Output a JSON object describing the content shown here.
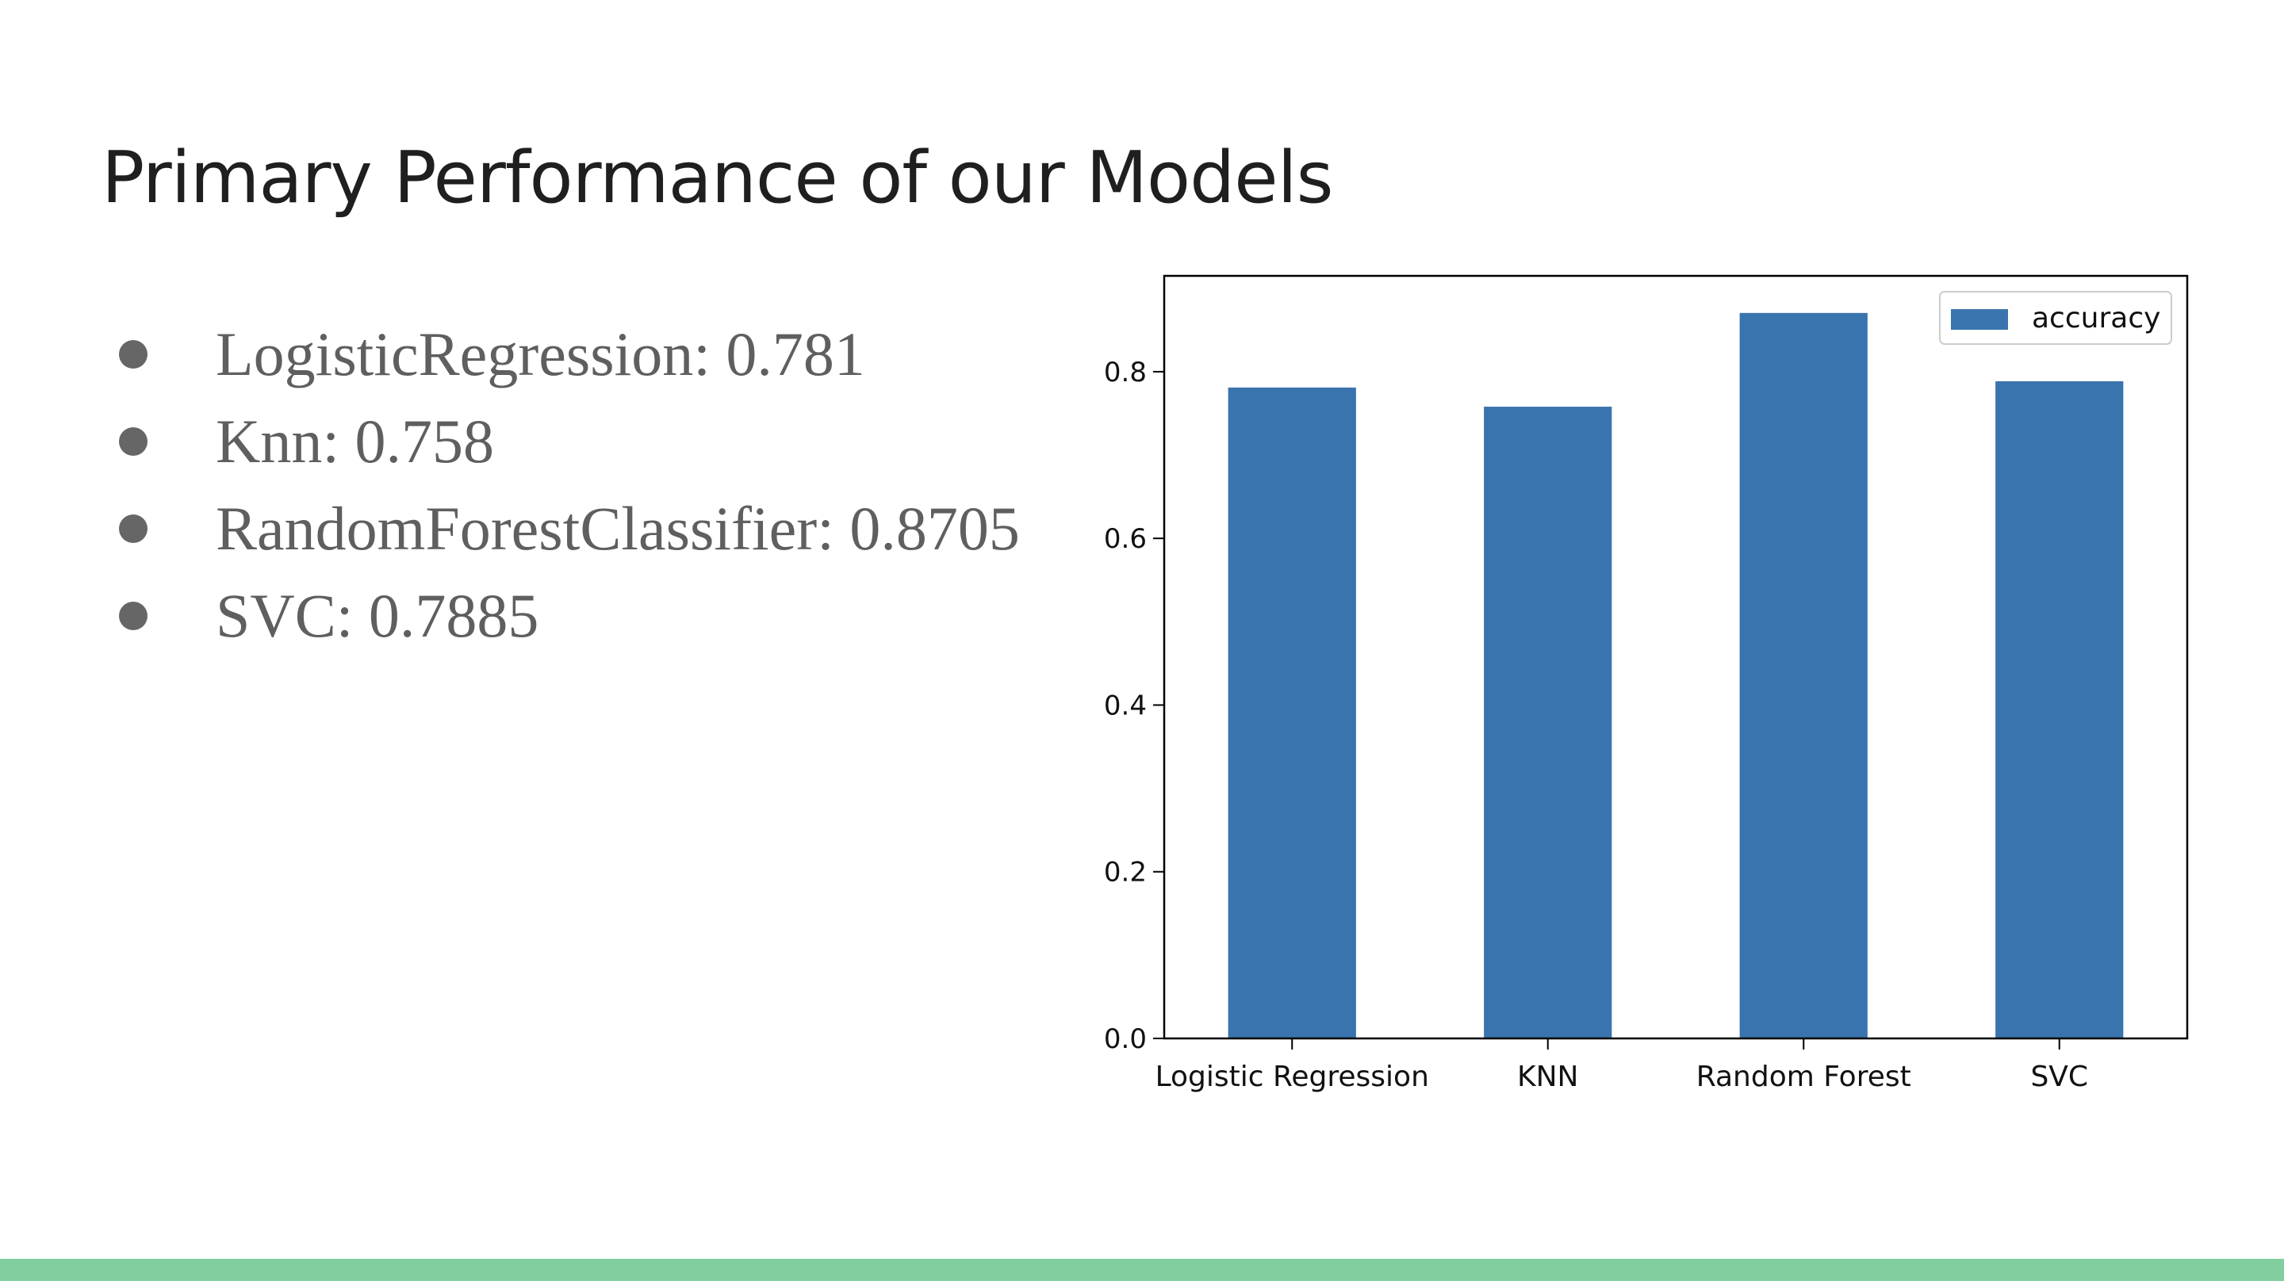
{
  "slide": {
    "title": "Primary Performance of our Models",
    "bullets": [
      "LogisticRegression: 0.781",
      "Knn: 0.758",
      "RandomForestClassifier: 0.8705",
      "SVC: 0.7885"
    ],
    "accent_color": "#81cf9f"
  },
  "chart_data": {
    "type": "bar",
    "categories": [
      "Logistic Regression",
      "KNN",
      "Random Forest",
      "SVC"
    ],
    "series": [
      {
        "name": "accuracy",
        "values": [
          0.781,
          0.758,
          0.8705,
          0.7885
        ],
        "color": "#3a74ae"
      }
    ],
    "ylim": [
      0,
      0.915
    ],
    "yticks": [
      0.0,
      0.2,
      0.4,
      0.6,
      0.8
    ],
    "ytick_labels": [
      "0.0",
      "0.2",
      "0.4",
      "0.6",
      "0.8"
    ],
    "grid": false,
    "legend_position": "top-right"
  }
}
